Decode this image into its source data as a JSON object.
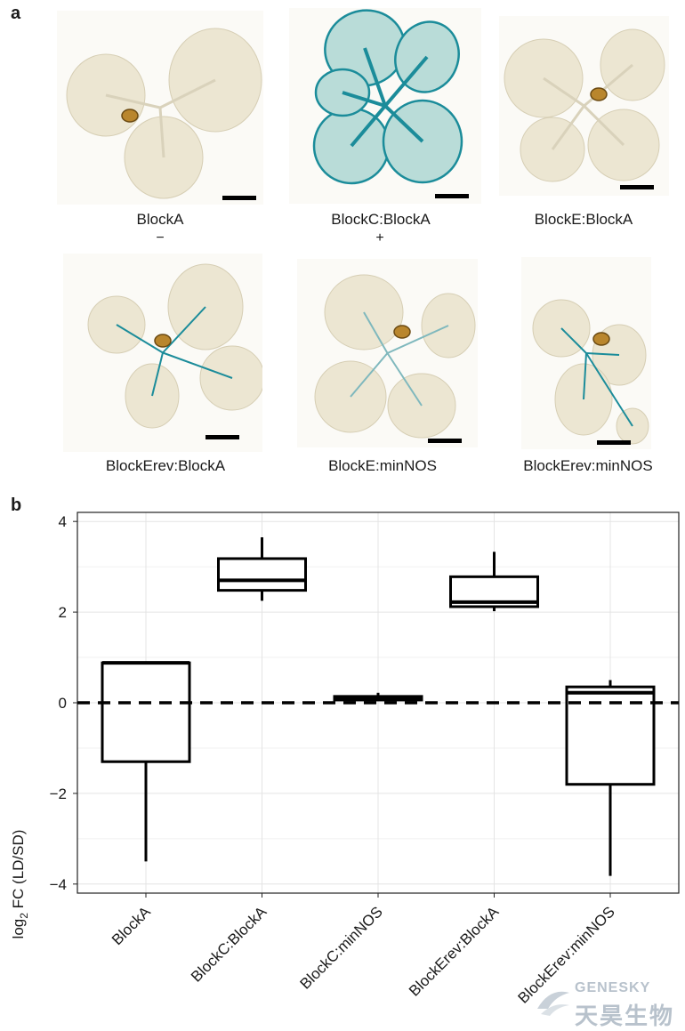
{
  "panel_a": {
    "letter": "a",
    "images": [
      {
        "label": "BlockA",
        "sign": "−",
        "stain": "none"
      },
      {
        "label": "BlockC:BlockA",
        "sign": "+",
        "stain": "strong"
      },
      {
        "label": "BlockE:BlockA",
        "sign": "",
        "stain": "none"
      },
      {
        "label": "BlockErev:BlockA",
        "sign": "",
        "stain": "veins"
      },
      {
        "label": "BlockE:minNOS",
        "sign": "",
        "stain": "faint"
      },
      {
        "label": "BlockErev:minNOS",
        "sign": "",
        "stain": "veins"
      }
    ]
  },
  "panel_b": {
    "letter": "b"
  },
  "chart_data": {
    "type": "box",
    "ylabel_main": "log",
    "ylabel_sub": "2",
    "ylabel_rest": " FC (LD/SD)",
    "ylim": [
      -4.2,
      4.2
    ],
    "yticks": [
      "−4",
      "−2",
      "0",
      "2",
      "4"
    ],
    "ytick_values": [
      -4,
      -2,
      0,
      2,
      4
    ],
    "reference_line": 0,
    "grid": true,
    "categories": [
      "BlockA",
      "BlockC:BlockA",
      "BlockC:minNOS",
      "BlockErev:BlockA",
      "BlockErev:minNOS"
    ],
    "boxes": [
      {
        "min": -3.5,
        "q1": -1.3,
        "median": 0.88,
        "q3": 0.88,
        "max": 0.88
      },
      {
        "min": 2.25,
        "q1": 2.48,
        "median": 2.7,
        "q3": 3.18,
        "max": 3.65
      },
      {
        "min": 0.05,
        "q1": 0.06,
        "median": 0.1,
        "q3": 0.14,
        "max": 0.22
      },
      {
        "min": 2.02,
        "q1": 2.12,
        "median": 2.22,
        "q3": 2.78,
        "max": 3.33
      },
      {
        "min": -3.82,
        "q1": -1.8,
        "median": 0.22,
        "q3": 0.35,
        "max": 0.5
      }
    ]
  },
  "watermark": {
    "brand": "GENESKY",
    "chinese": "天昊生物",
    "color": "#b8c2cc"
  },
  "colors": {
    "stain_blue": "#1b8c9a",
    "leaf": "#ece6d2",
    "seed": "#b9862d"
  }
}
